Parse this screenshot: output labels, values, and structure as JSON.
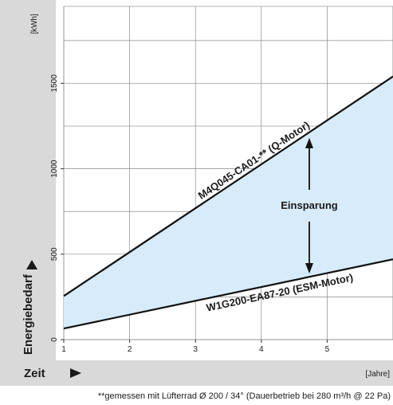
{
  "chart_data": {
    "type": "line",
    "x_unit": "[Jahre]",
    "y_unit": "[kWh]",
    "xlabel": "Zeit",
    "ylabel": "Energiebedarf",
    "x_ticks": [
      "1",
      "2",
      "3",
      "4",
      "5"
    ],
    "y_ticks": [
      "0",
      "500",
      "1000",
      "1500"
    ],
    "xlim": [
      1,
      6
    ],
    "ylim": [
      0,
      1950
    ],
    "grid": true,
    "series": [
      {
        "name": "M4Q045-CA01-** (Q-Motor)",
        "x": [
          1,
          6
        ],
        "y": [
          255,
          1540
        ],
        "color": "#111111"
      },
      {
        "name": "W1G200-EA87-20 (ESM-Motor)",
        "x": [
          1,
          6
        ],
        "y": [
          65,
          470
        ],
        "color": "#111111"
      }
    ],
    "fill_between_color": "#d7ebfa",
    "annotation": "Einsparung",
    "footnote": "**gemessen mit Lüfterrad Ø 200 / 34° (Dauerbetrieb bei 280 m³/h @ 22 Pa)"
  }
}
